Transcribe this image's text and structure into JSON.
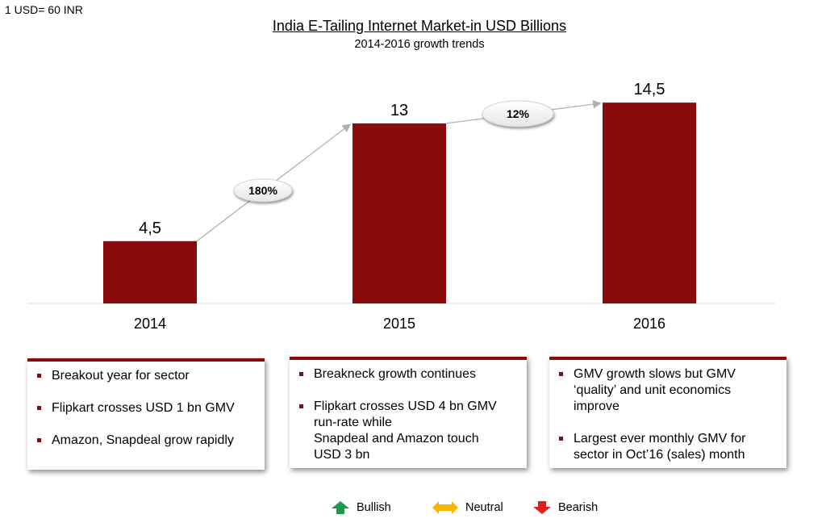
{
  "note": "1 USD= 60 INR",
  "chart_data": {
    "type": "bar",
    "title": "India E-Tailing Internet Market-in USD Billions",
    "subtitle": "2014-2016 growth trends",
    "categories": [
      "2014",
      "2015",
      "2016"
    ],
    "values": [
      4.5,
      13,
      14.5
    ],
    "value_labels": [
      "4,5",
      "13",
      "14,5"
    ],
    "color": "#8b0a0c",
    "ylim": [
      0,
      15.5
    ],
    "grid": false,
    "growth_callouts": [
      "180%",
      "12%"
    ]
  },
  "boxes": [
    {
      "items": [
        {
          "lines": [
            "Breakout year for sector"
          ]
        },
        {
          "lines": [
            "Flipkart crosses USD 1 bn GMV"
          ]
        },
        {
          "lines": [
            "Amazon, Snapdeal grow rapidly"
          ]
        }
      ]
    },
    {
      "items": [
        {
          "lines": [
            "Breakneck growth continues"
          ]
        },
        {
          "lines": [
            "Flipkart crosses USD 4 bn GMV",
            "run-rate while",
            "Snapdeal and Amazon touch",
            "USD 3 bn"
          ]
        }
      ]
    },
    {
      "items": [
        {
          "lines": [
            "GMV growth slows but GMV",
            "‘quality’ and unit economics",
            "improve"
          ]
        },
        {
          "lines": [
            "Largest ever monthly GMV for",
            "sector in Oct’16 (sales) month"
          ]
        }
      ]
    }
  ],
  "legend": [
    {
      "label": "Bullish",
      "icon": "up-arrow-icon",
      "color": "#1a9b4b"
    },
    {
      "label": "Neutral",
      "icon": "left-right-arrow-icon",
      "color": "#f5b800"
    },
    {
      "label": "Bearish",
      "icon": "down-arrow-icon",
      "color": "#e01e1e"
    }
  ]
}
